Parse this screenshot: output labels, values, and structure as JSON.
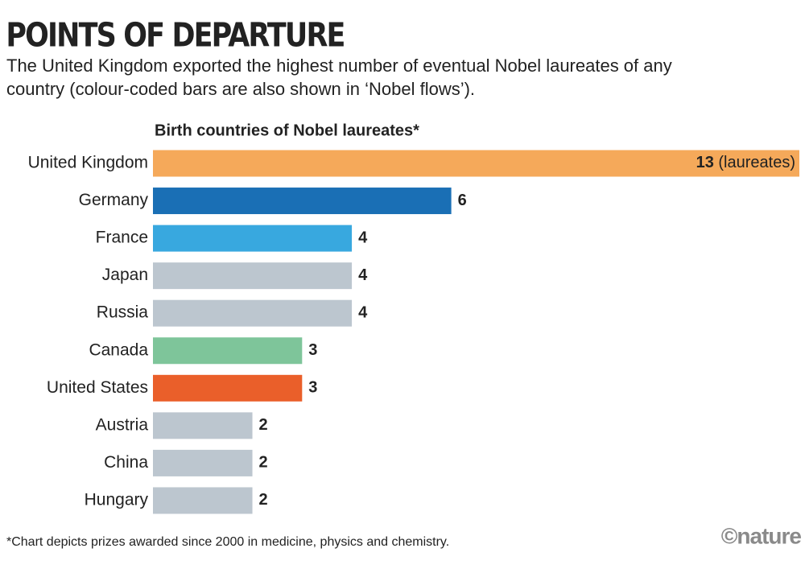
{
  "chart_data": {
    "type": "hbar",
    "title": "POINTS OF DEPARTURE",
    "subtitle": [
      "The United Kingdom exported the highest number of eventual Nobel laureates of any",
      "country (colour-coded bars are also shown in ‘Nobel flows’)."
    ],
    "heading": "Birth countries of Nobel laureates*",
    "categories": [
      "United Kingdom",
      "Germany",
      "France",
      "Japan",
      "Russia",
      "Canada",
      "United States",
      "Austria",
      "China",
      "Hungary"
    ],
    "values": [
      13,
      6,
      4,
      4,
      4,
      3,
      3,
      2,
      2,
      2
    ],
    "colors": [
      "#f5a95a",
      "#1a6fb5",
      "#38a8df",
      "#bcc6cf",
      "#bcc6cf",
      "#7ec59a",
      "#ea5f2a",
      "#bcc6cf",
      "#bcc6cf",
      "#bcc6cf"
    ],
    "first_value_unit": "(laureates)",
    "footnote": "*Chart depicts prizes awarded since 2000 in medicine, physics and chemistry.",
    "credit": "©nature"
  }
}
